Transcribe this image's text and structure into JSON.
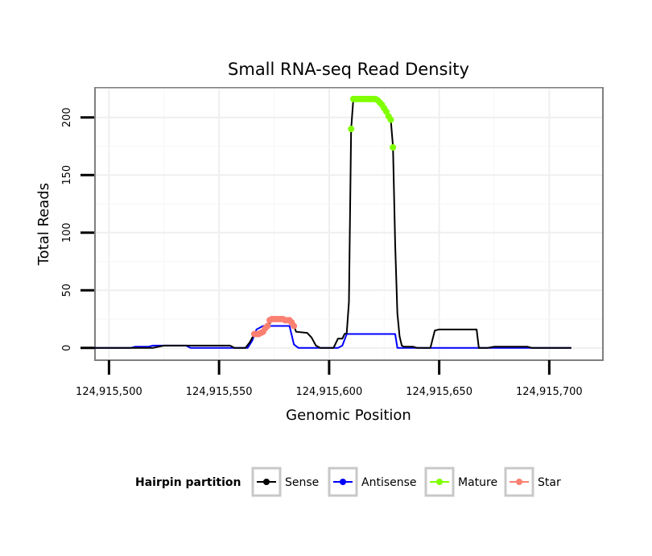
{
  "chart_data": {
    "type": "line",
    "title": "Small RNA-seq Read Density",
    "xlabel": "Genomic Position",
    "ylabel": "Total Reads",
    "xlim": [
      124915494,
      124915724
    ],
    "ylim": [
      -10,
      225
    ],
    "x_ticks": [
      124915500,
      124915550,
      124915600,
      124915650,
      124915700
    ],
    "x_tick_labels": [
      "124,915,500",
      "124,915,550",
      "124,915,600",
      "124,915,650",
      "124,915,700"
    ],
    "y_ticks": [
      0,
      50,
      100,
      150,
      200
    ],
    "y_tick_labels": [
      "0",
      "50",
      "100",
      "150",
      "200"
    ],
    "grid": true,
    "legend": {
      "title": "Hairpin partition",
      "position": "bottom",
      "entries": [
        {
          "label": "Sense",
          "color": "#000000"
        },
        {
          "label": "Antisense",
          "color": "#0000ff"
        },
        {
          "label": "Mature",
          "color": "#7fff00"
        },
        {
          "label": "Star",
          "color": "#fa8072"
        }
      ]
    },
    "series": [
      {
        "name": "Sense",
        "color": "#000000",
        "kind": "line",
        "points": [
          [
            124915492,
            0
          ],
          [
            124915520,
            0
          ],
          [
            124915525,
            2
          ],
          [
            124915555,
            2
          ],
          [
            124915557,
            0
          ],
          [
            124915562,
            0
          ],
          [
            124915564,
            5
          ],
          [
            124915566,
            12
          ],
          [
            124915570,
            14
          ],
          [
            124915572,
            18
          ],
          [
            124915574,
            24
          ],
          [
            124915583,
            24
          ],
          [
            124915585,
            14
          ],
          [
            124915590,
            13
          ],
          [
            124915592,
            9
          ],
          [
            124915594,
            2
          ],
          [
            124915596,
            0
          ],
          [
            124915602,
            0
          ],
          [
            124915604,
            8
          ],
          [
            124915606,
            8
          ],
          [
            124915607,
            12
          ],
          [
            124915608,
            13
          ],
          [
            124915609,
            40
          ],
          [
            124915610,
            190
          ],
          [
            124915611,
            216
          ],
          [
            124915620,
            216
          ],
          [
            124915622,
            215
          ],
          [
            124915624,
            212
          ],
          [
            124915626,
            205
          ],
          [
            124915628,
            198
          ],
          [
            124915629,
            175
          ],
          [
            124915630,
            90
          ],
          [
            124915631,
            30
          ],
          [
            124915632,
            10
          ],
          [
            124915633,
            2
          ],
          [
            124915634,
            1
          ],
          [
            124915638,
            1
          ],
          [
            124915640,
            0
          ],
          [
            124915646,
            0
          ],
          [
            124915648,
            15
          ],
          [
            124915650,
            16
          ],
          [
            124915667,
            16
          ],
          [
            124915668,
            0
          ],
          [
            124915672,
            0
          ],
          [
            124915675,
            1
          ],
          [
            124915690,
            1
          ],
          [
            124915692,
            0
          ],
          [
            124915710,
            0
          ]
        ]
      },
      {
        "name": "Antisense",
        "color": "#0000ff",
        "kind": "line",
        "points": [
          [
            124915492,
            0
          ],
          [
            124915510,
            0
          ],
          [
            124915512,
            1
          ],
          [
            124915518,
            1
          ],
          [
            124915520,
            2
          ],
          [
            124915535,
            2
          ],
          [
            124915537,
            0
          ],
          [
            124915563,
            0
          ],
          [
            124915565,
            6
          ],
          [
            124915567,
            16
          ],
          [
            124915570,
            19
          ],
          [
            124915582,
            19
          ],
          [
            124915584,
            3
          ],
          [
            124915586,
            0
          ],
          [
            124915604,
            0
          ],
          [
            124915606,
            2
          ],
          [
            124915608,
            12
          ],
          [
            124915623,
            12
          ],
          [
            124915624,
            12
          ],
          [
            124915630,
            12
          ],
          [
            124915631,
            0
          ],
          [
            124915710,
            0
          ]
        ]
      },
      {
        "name": "Mature",
        "color": "#7fff00",
        "kind": "points",
        "points": [
          [
            124915610,
            190
          ],
          [
            124915611,
            216
          ],
          [
            124915612,
            216
          ],
          [
            124915613,
            216
          ],
          [
            124915614,
            216
          ],
          [
            124915615,
            216
          ],
          [
            124915616,
            216
          ],
          [
            124915617,
            216
          ],
          [
            124915618,
            216
          ],
          [
            124915619,
            216
          ],
          [
            124915620,
            216
          ],
          [
            124915621,
            216
          ],
          [
            124915622,
            215
          ],
          [
            124915623,
            213
          ],
          [
            124915624,
            211
          ],
          [
            124915625,
            208
          ],
          [
            124915626,
            205
          ],
          [
            124915627,
            201
          ],
          [
            124915628,
            198
          ],
          [
            124915629,
            174
          ]
        ]
      },
      {
        "name": "Star",
        "color": "#fa8072",
        "kind": "points",
        "points": [
          [
            124915566,
            12
          ],
          [
            124915567,
            12
          ],
          [
            124915568,
            12
          ],
          [
            124915569,
            13
          ],
          [
            124915570,
            14
          ],
          [
            124915571,
            17
          ],
          [
            124915572,
            19
          ],
          [
            124915573,
            24
          ],
          [
            124915574,
            25
          ],
          [
            124915575,
            25
          ],
          [
            124915576,
            25
          ],
          [
            124915577,
            25
          ],
          [
            124915578,
            25
          ],
          [
            124915579,
            25
          ],
          [
            124915580,
            24
          ],
          [
            124915581,
            24
          ],
          [
            124915582,
            24
          ],
          [
            124915583,
            22
          ],
          [
            124915584,
            19
          ]
        ]
      }
    ]
  }
}
